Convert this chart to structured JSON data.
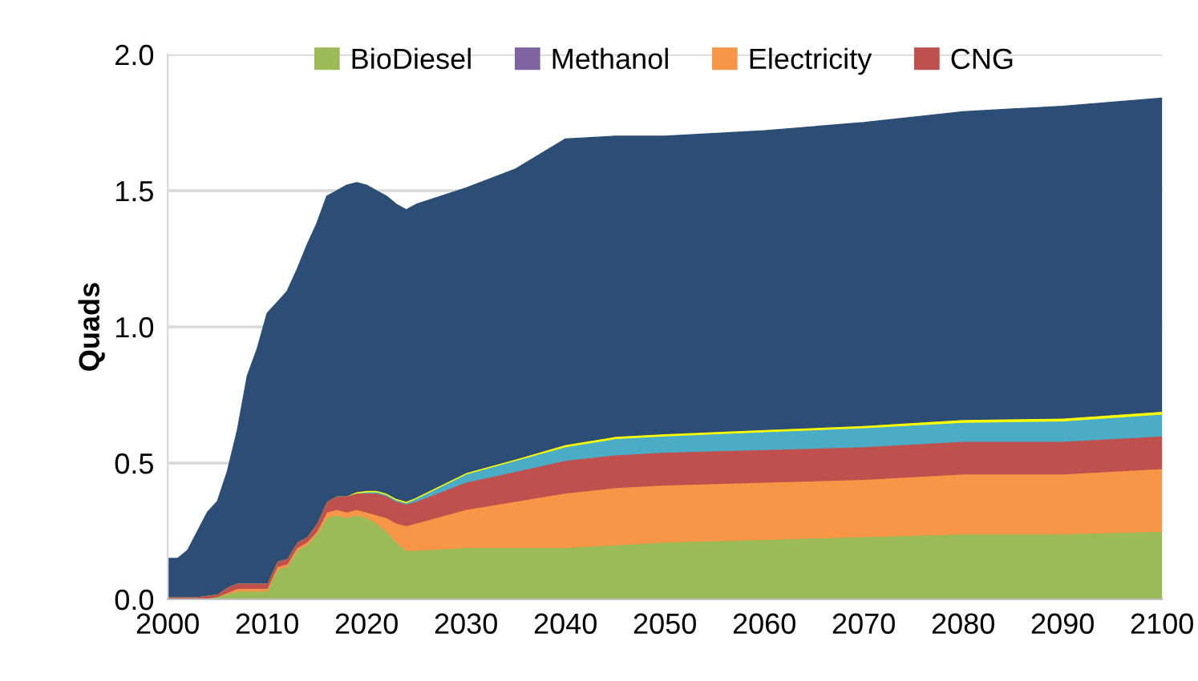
{
  "chart_data": {
    "type": "area",
    "stacked": true,
    "ylabel": "Quads",
    "x": [
      2000,
      2001,
      2002,
      2003,
      2004,
      2005,
      2006,
      2007,
      2008,
      2009,
      2010,
      2011,
      2012,
      2013,
      2014,
      2015,
      2016,
      2017,
      2018,
      2019,
      2020,
      2021,
      2022,
      2023,
      2024,
      2025,
      2030,
      2035,
      2040,
      2045,
      2050,
      2060,
      2070,
      2080,
      2090,
      2100
    ],
    "series": [
      {
        "name": "BioDiesel",
        "color": "#9bbb59",
        "values": [
          0,
          0,
          0,
          0,
          0.005,
          0.01,
          0.02,
          0.03,
          0.03,
          0.03,
          0.03,
          0.11,
          0.12,
          0.18,
          0.2,
          0.24,
          0.3,
          0.31,
          0.3,
          0.31,
          0.3,
          0.28,
          0.25,
          0.21,
          0.18,
          0.18,
          0.19,
          0.19,
          0.19,
          0.2,
          0.21,
          0.22,
          0.23,
          0.24,
          0.24,
          0.25
        ]
      },
      {
        "name": "Methanol",
        "color": "#8064a2",
        "values": [
          null,
          null,
          null,
          null,
          null,
          null,
          null,
          null,
          null,
          null,
          null,
          null,
          null,
          null,
          null,
          null,
          null,
          null,
          null,
          null,
          null,
          null,
          null,
          null,
          null,
          null,
          null,
          null,
          null,
          null,
          null,
          null,
          null,
          null,
          null,
          null
        ]
      },
      {
        "name": "Electricity",
        "color": "#f79646",
        "values": [
          0,
          0,
          0,
          0,
          0,
          0,
          0.005,
          0.01,
          0.01,
          0.01,
          0.01,
          0.01,
          0.01,
          0.01,
          0.01,
          0.01,
          0.02,
          0.02,
          0.02,
          0.02,
          0.02,
          0.03,
          0.05,
          0.07,
          0.09,
          0.1,
          0.14,
          0.17,
          0.2,
          0.21,
          0.21,
          0.21,
          0.21,
          0.22,
          0.22,
          0.23
        ]
      },
      {
        "name": "CNG",
        "color": "#c0504d",
        "values": [
          0.01,
          0.01,
          0.01,
          0.01,
          0.01,
          0.01,
          0.02,
          0.02,
          0.02,
          0.02,
          0.02,
          0.02,
          0.02,
          0.02,
          0.02,
          0.03,
          0.04,
          0.05,
          0.06,
          0.06,
          0.07,
          0.08,
          0.08,
          0.08,
          0.08,
          0.08,
          0.1,
          0.11,
          0.12,
          0.12,
          0.12,
          0.12,
          0.12,
          0.12,
          0.12,
          0.12
        ]
      },
      {
        "color": "#4bacc6",
        "values": [
          0,
          0,
          0,
          0,
          0,
          0,
          0,
          0,
          0,
          0,
          0,
          0,
          0,
          0,
          0,
          0,
          0,
          0,
          0,
          0,
          0.005,
          0.005,
          0.005,
          0.005,
          0.005,
          0.01,
          0.03,
          0.04,
          0.05,
          0.06,
          0.06,
          0.065,
          0.07,
          0.07,
          0.075,
          0.08
        ]
      },
      {
        "color": "#ffff00",
        "values": [
          0,
          0,
          0,
          0,
          0,
          0,
          0,
          0,
          0,
          0,
          0,
          0,
          0,
          0,
          0,
          0,
          0,
          0,
          0,
          0.005,
          0.005,
          0.005,
          0.005,
          0.005,
          0.005,
          0.005,
          0.005,
          0.005,
          0.008,
          0.008,
          0.008,
          0.008,
          0.008,
          0.01,
          0.01,
          0.01
        ]
      },
      {
        "color": "#2c4d75",
        "values": [
          0.14,
          0.14,
          0.17,
          0.24,
          0.305,
          0.34,
          0.425,
          0.56,
          0.76,
          0.86,
          0.99,
          0.95,
          0.98,
          1.0,
          1.07,
          1.1,
          1.12,
          1.12,
          1.14,
          1.135,
          1.12,
          1.1,
          1.09,
          1.08,
          1.07,
          1.075,
          1.045,
          1.065,
          1.122,
          1.102,
          1.092,
          1.097,
          1.112,
          1.13,
          1.145,
          1.15
        ]
      }
    ],
    "xlim": [
      2000,
      2100
    ],
    "xticks": [
      2000,
      2010,
      2020,
      2030,
      2040,
      2050,
      2060,
      2070,
      2080,
      2090,
      2100
    ],
    "ylim": [
      0,
      2.0
    ],
    "yticks": [
      {
        "value": 0,
        "label": "0.0"
      },
      {
        "value": 0.5,
        "label": "0.5"
      },
      {
        "value": 1.0,
        "label": "1.0"
      },
      {
        "value": 1.5,
        "label": "1.5"
      },
      {
        "value": 2.0,
        "label": "2.0"
      }
    ],
    "grid": "y",
    "legend": "top"
  }
}
